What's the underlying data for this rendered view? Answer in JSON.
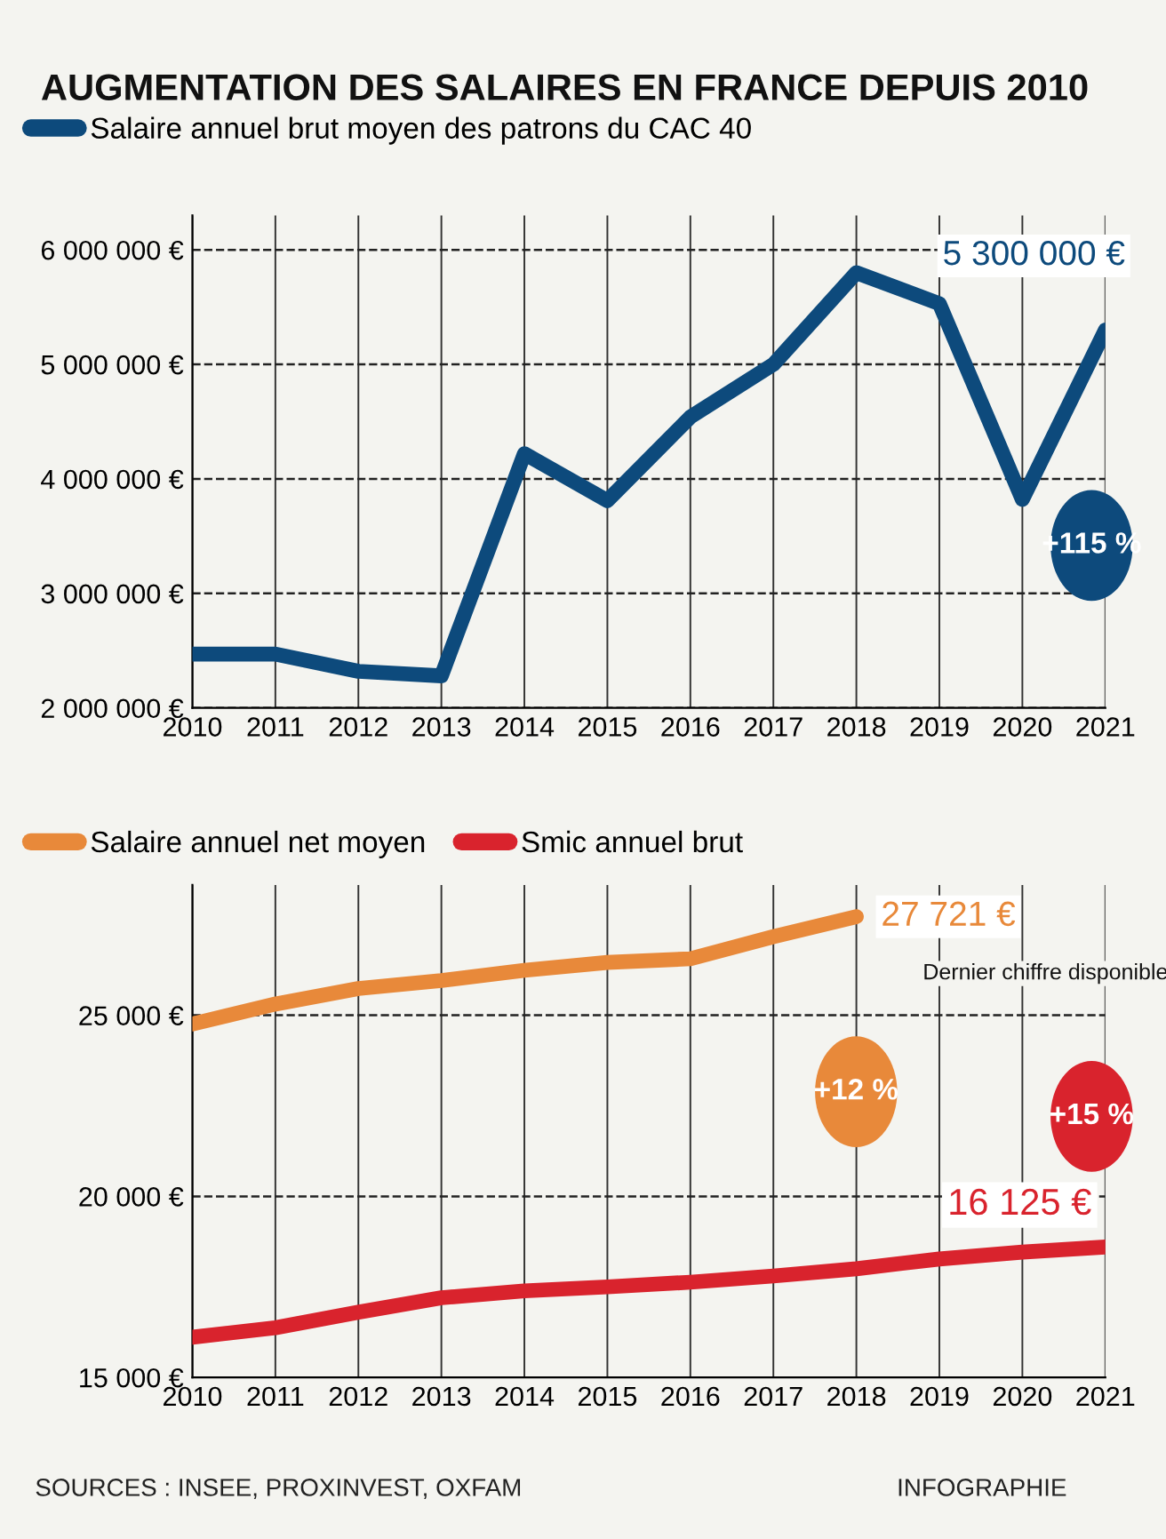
{
  "chart_data": [
    {
      "type": "line",
      "title": "AUGMENTATION DES SALAIRES EN FRANCE DEPUIS 2010",
      "x": [
        2010,
        2011,
        2012,
        2013,
        2014,
        2015,
        2016,
        2017,
        2018,
        2019,
        2020,
        2021
      ],
      "series": [
        {
          "name": "Salaire annuel brut moyen des patrons du CAC 40",
          "color": "#0d4a7c",
          "values": [
            2470000,
            2470000,
            2320000,
            2280000,
            4220000,
            3810000,
            4540000,
            5000000,
            5800000,
            5530000,
            3820000,
            5300000
          ]
        }
      ],
      "xlim": [
        2010,
        2021
      ],
      "xticks": [
        2010,
        2011,
        2012,
        2013,
        2014,
        2015,
        2016,
        2017,
        2018,
        2019,
        2020,
        2021
      ],
      "ylim": [
        2000000,
        6300000
      ],
      "yticks": [
        {
          "value": 2000000,
          "label": "2 000 000 €"
        },
        {
          "value": 3000000,
          "label": "3 000 000 €"
        },
        {
          "value": 4000000,
          "label": "4 000 000 €"
        },
        {
          "value": 5000000,
          "label": "5 000 000 €"
        },
        {
          "value": 6000000,
          "label": "6 000 000 €"
        }
      ],
      "grid": true,
      "legend": "top left",
      "line_style": "solid",
      "annotations": [
        {
          "text": "5 300 000 €",
          "x": 2021,
          "y": 5300000
        },
        "+115 %"
      ]
    },
    {
      "type": "line",
      "x": [
        2010,
        2011,
        2012,
        2013,
        2014,
        2015,
        2016,
        2017,
        2018,
        2019,
        2020,
        2021
      ],
      "series": [
        {
          "name": "Salaire annuel net moyen",
          "color": "#e8893a",
          "values": [
            24760,
            25310,
            25740,
            25960,
            26240,
            26460,
            26560,
            27170,
            27721,
            null,
            null,
            null
          ]
        },
        {
          "name": "Smic annuel brut",
          "color": "#d9232d",
          "values": [
            16110,
            16370,
            16800,
            17200,
            17390,
            17500,
            17630,
            17800,
            18000,
            18270,
            18460,
            18600
          ]
        }
      ],
      "xlim": [
        2010,
        2021
      ],
      "xticks": [
        2010,
        2011,
        2012,
        2013,
        2014,
        2015,
        2016,
        2017,
        2018,
        2019,
        2020,
        2021
      ],
      "ylim": [
        15000,
        28600
      ],
      "yticks": [
        {
          "value": 15000,
          "label": "15 000 €"
        },
        {
          "value": 20000,
          "label": "20 000 €"
        },
        {
          "value": 25000,
          "label": "25 000 €"
        }
      ],
      "grid": true,
      "legend": "top left",
      "line_style": "solid",
      "annotations": [
        {
          "text": "27 721 €",
          "x": 2018,
          "y": 27721
        },
        "Dernier chiffre disponible",
        "+12 %",
        "+15 %",
        "16 125 €",
        "SOURCES : INSEE, PROXINVEST, OXFAM",
        "INFOGRAPHIE"
      ]
    }
  ]
}
